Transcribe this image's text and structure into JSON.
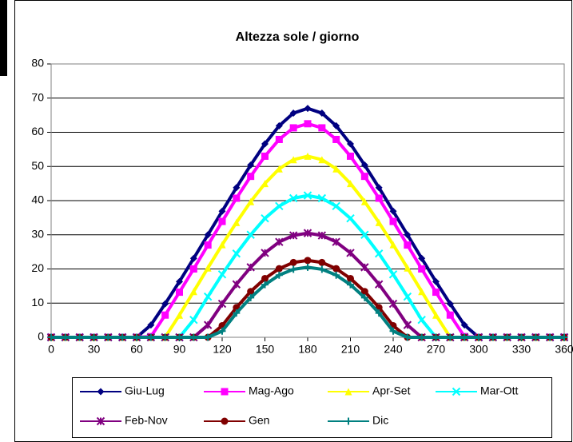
{
  "chart_data": {
    "type": "line",
    "title": "Altezza sole / giorno",
    "x": [
      0,
      10,
      20,
      30,
      40,
      50,
      60,
      70,
      80,
      90,
      100,
      110,
      120,
      130,
      140,
      150,
      160,
      170,
      180,
      190,
      200,
      210,
      220,
      230,
      240,
      250,
      260,
      270,
      280,
      290,
      300,
      310,
      320,
      330,
      340,
      350,
      360
    ],
    "series": [
      {
        "name": "Giu-Lug",
        "color": "#000080",
        "marker": "diamond",
        "values": [
          0,
          0,
          0,
          0,
          0,
          0,
          0,
          3.6,
          9.8,
          16.3,
          23.1,
          30,
          36.9,
          43.8,
          50.4,
          56.6,
          61.9,
          65.6,
          67,
          65.6,
          61.9,
          56.6,
          50.4,
          43.8,
          36.9,
          30,
          23.1,
          16.3,
          9.8,
          3.6,
          0,
          0,
          0,
          0,
          0,
          0,
          0
        ]
      },
      {
        "name": "Mag-Ago",
        "color": "#ff00ff",
        "marker": "square",
        "values": [
          0,
          0,
          0,
          0,
          0,
          0,
          0,
          0.2,
          6.5,
          13.2,
          20,
          27,
          33.9,
          40.7,
          47.1,
          53,
          57.9,
          61.3,
          62.5,
          61.3,
          57.9,
          53,
          47.1,
          40.7,
          33.9,
          27,
          20,
          13.2,
          6.5,
          0.2,
          0,
          0,
          0,
          0,
          0,
          0,
          0
        ]
      },
      {
        "name": "Apr-Set",
        "color": "#ffff00",
        "marker": "triangle",
        "values": [
          0,
          0,
          0,
          0,
          0,
          0,
          0,
          0,
          0,
          6.5,
          13.4,
          20.3,
          27.1,
          33.6,
          39.7,
          45,
          49.3,
          52,
          53,
          52,
          49.3,
          45,
          39.7,
          33.6,
          27.1,
          20.3,
          13.4,
          6.5,
          0,
          0,
          0,
          0,
          0,
          0,
          0,
          0,
          0
        ]
      },
      {
        "name": "Mar-Ott",
        "color": "#00ffff",
        "marker": "x",
        "values": [
          0,
          0,
          0,
          0,
          0,
          0,
          0,
          0,
          0,
          0,
          5.1,
          11.9,
          18.4,
          24.5,
          30,
          34.8,
          38.4,
          40.7,
          41.5,
          40.7,
          38.4,
          34.8,
          30,
          24.5,
          18.4,
          11.9,
          5.1,
          0,
          0,
          0,
          0,
          0,
          0,
          0,
          0,
          0,
          0
        ]
      },
      {
        "name": "Feb-Nov",
        "color": "#800080",
        "marker": "star",
        "values": [
          0,
          0,
          0,
          0,
          0,
          0,
          0,
          0,
          0,
          0,
          0,
          3.6,
          9.8,
          15.5,
          20.5,
          24.7,
          27.9,
          29.8,
          30.5,
          29.8,
          27.9,
          24.7,
          20.5,
          15.5,
          9.8,
          3.6,
          0,
          0,
          0,
          0,
          0,
          0,
          0,
          0,
          0,
          0,
          0
        ]
      },
      {
        "name": "Gen",
        "color": "#800000",
        "marker": "circle",
        "values": [
          0,
          0,
          0,
          0,
          0,
          0,
          0,
          0,
          0,
          0,
          0,
          0,
          3.4,
          8.7,
          13.4,
          17.2,
          20.1,
          21.9,
          22.5,
          21.9,
          20.1,
          17.2,
          13.4,
          8.7,
          3.4,
          0,
          0,
          0,
          0,
          0,
          0,
          0,
          0,
          0,
          0,
          0,
          0
        ]
      },
      {
        "name": "Dic",
        "color": "#008080",
        "marker": "plus",
        "values": [
          0,
          0,
          0,
          0,
          0,
          0,
          0,
          0,
          0,
          0,
          0,
          0,
          1.8,
          7.1,
          11.6,
          15.4,
          18.2,
          19.9,
          20.5,
          19.9,
          18.2,
          15.4,
          11.6,
          7.1,
          1.8,
          0,
          0,
          0,
          0,
          0,
          0,
          0,
          0,
          0,
          0,
          0,
          0
        ]
      }
    ],
    "xlim": [
      0,
      360
    ],
    "xticks": [
      0,
      30,
      60,
      90,
      120,
      150,
      180,
      210,
      240,
      270,
      300,
      330,
      360
    ],
    "ylim": [
      0,
      80
    ],
    "yticks": [
      0,
      10,
      20,
      30,
      40,
      50,
      60,
      70,
      80
    ],
    "grid": true,
    "legend": "bottom"
  }
}
